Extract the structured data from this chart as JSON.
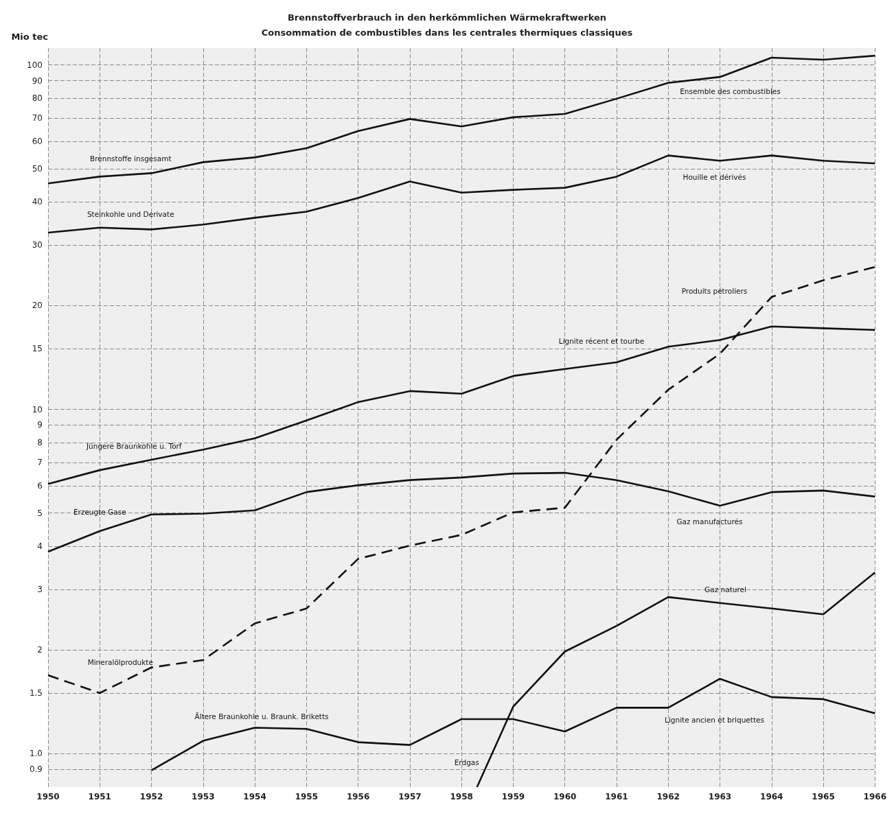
{
  "chart_data": {
    "type": "line",
    "title": "Brennstoffverbrauch in den herkömmlichen Wärmekraftwerken",
    "subtitle": "Consommation de combustibles dans les centrales thermiques classiques",
    "ylabel": "Mio tec",
    "log": "y",
    "grid": true,
    "legend": false,
    "marker": "none",
    "x": [
      1950,
      1951,
      1952,
      1953,
      1954,
      1955,
      1956,
      1957,
      1958,
      1959,
      1960,
      1961,
      1962,
      1963,
      1964,
      1965,
      1966
    ],
    "xlim": [
      1950,
      1966
    ],
    "xticks": [
      1950,
      1951,
      1952,
      1953,
      1954,
      1955,
      1956,
      1957,
      1958,
      1959,
      1960,
      1961,
      1962,
      1963,
      1964,
      1965,
      1966
    ],
    "ylim": [
      0.8,
      112
    ],
    "yticks": [
      0.9,
      {
        "value": 1,
        "label": "1.0"
      },
      1.5,
      2,
      3,
      4,
      5,
      6,
      7,
      8,
      9,
      10,
      15,
      20,
      30,
      40,
      50,
      60,
      70,
      80,
      90,
      100
    ],
    "series": [
      {
        "name": "Brennstoffe insgesamt",
        "color": "#111111",
        "line_style": "solid",
        "values": [
          45.3,
          47.4,
          48.5,
          52.2,
          53.9,
          57.3,
          64.3,
          69.7,
          66.3,
          70.5,
          72.1,
          79.8,
          88.7,
          92.3,
          105,
          103.6,
          106.4
        ]
      },
      {
        "name": "Steinkohle und Derivate",
        "color": "#111111",
        "line_style": "solid",
        "values": [
          32.6,
          33.7,
          33.3,
          34.4,
          36.0,
          37.5,
          41.1,
          45.9,
          42.6,
          43.4,
          44.0,
          47.4,
          54.6,
          52.7,
          54.6,
          52.7,
          51.8
        ]
      },
      {
        "name": "Mineralölprodukte",
        "color": "#111111",
        "line_style": "dashed",
        "values": [
          1.69,
          1.5,
          1.78,
          1.87,
          2.39,
          2.64,
          3.68,
          4.02,
          4.32,
          5.02,
          5.18,
          8.16,
          11.4,
          14.5,
          21.2,
          23.7,
          25.9
        ]
      },
      {
        "name": "Jüngere Braunkohle u. Torf",
        "color": "#111111",
        "line_style": "solid",
        "values": [
          6.07,
          6.66,
          7.14,
          7.64,
          8.24,
          9.28,
          10.5,
          11.3,
          11.1,
          12.5,
          13.1,
          13.7,
          15.2,
          15.9,
          17.4,
          17.2,
          17.0
        ]
      },
      {
        "name": "Erzeugte Gase",
        "color": "#111111",
        "line_style": "solid",
        "values": [
          3.86,
          4.43,
          4.95,
          4.98,
          5.09,
          5.75,
          6.02,
          6.23,
          6.34,
          6.51,
          6.54,
          6.23,
          5.78,
          5.25,
          5.75,
          5.81,
          5.58
        ]
      },
      {
        "name": "Ältere Braunkohle u. Braunk. Briketts",
        "color": "#111111",
        "line_style": "solid",
        "x": [
          1952,
          1953,
          1954,
          1955,
          1956,
          1957,
          1958,
          1959,
          1960,
          1961,
          1962,
          1963,
          1964,
          1965,
          1966
        ],
        "values": [
          0.895,
          1.09,
          1.19,
          1.18,
          1.08,
          1.06,
          1.26,
          1.26,
          1.16,
          1.36,
          1.36,
          1.65,
          1.46,
          1.44,
          1.31
        ]
      },
      {
        "name": "Erdgas",
        "color": "#111111",
        "line_style": "solid",
        "x": [
          1958.3,
          1959,
          1960,
          1961,
          1962,
          1963,
          1964,
          1965,
          1966
        ],
        "values": [
          0.8,
          1.37,
          1.98,
          2.35,
          2.85,
          2.74,
          2.64,
          2.54,
          3.36
        ]
      }
    ],
    "annotations": [
      "Ensemble des combustibles",
      "Houille et dérivés",
      "Produits pétroliers",
      "Gaz manufacturés",
      "Lignite ancien et briquettes",
      "Lignite récent et tourbe",
      "Gaz naturel"
    ]
  }
}
